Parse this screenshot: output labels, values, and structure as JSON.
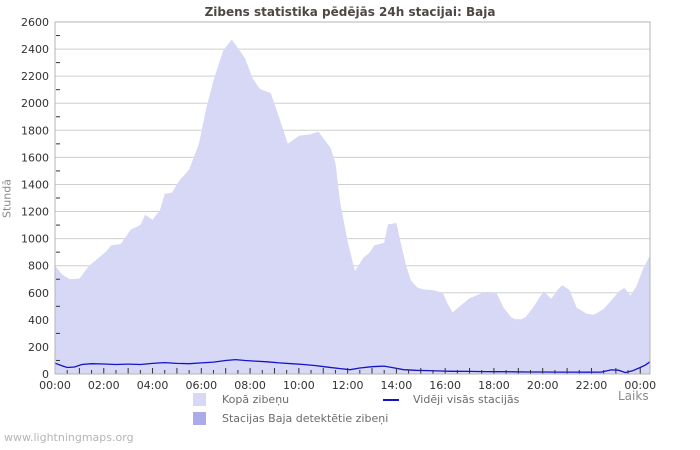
{
  "header": {
    "title": "Zibens statistika pēdējās 24h stacijai: Baja"
  },
  "footer": {
    "watermark": "www.lightningmaps.org"
  },
  "legend": {
    "items": [
      {
        "label": "Kopā zibeņu",
        "swatch": "area",
        "color": "#d7d7f6"
      },
      {
        "label": "Stacijas Baja detektētie zibeņi",
        "swatch": "area",
        "color": "#abableb"
      },
      {
        "label": "Vidēji visās stacijās",
        "swatch": "line",
        "color": "#1414c8"
      }
    ]
  },
  "chart_data": {
    "type": "area",
    "title": "Zibens statistika pēdējās 24h stacijai: Baja",
    "xlabel": "Laiks",
    "ylabel": "Stundā",
    "x_domain": [
      0,
      24.4
    ],
    "ylim": [
      0,
      2600
    ],
    "y_tick_step": 200,
    "y_minor_step": 100,
    "x_minor_step": 0.5,
    "grid": true,
    "legend_position": "bottom",
    "colors": {
      "grid": "#cfcfcf",
      "border": "#b4b4b4",
      "tick": "#333333",
      "tick_label": "#333333",
      "plot_background": "#ffffff"
    },
    "x_ticks": [
      {
        "t": 0,
        "label": "00:00"
      },
      {
        "t": 2,
        "label": "02:00"
      },
      {
        "t": 4,
        "label": "04:00"
      },
      {
        "t": 6,
        "label": "06:00"
      },
      {
        "t": 8,
        "label": "08:00"
      },
      {
        "t": 10,
        "label": "10:00"
      },
      {
        "t": 12,
        "label": "12:00"
      },
      {
        "t": 14,
        "label": "14:00"
      },
      {
        "t": 16,
        "label": "16:00"
      },
      {
        "t": 18,
        "label": "18:00"
      },
      {
        "t": 20,
        "label": "20:00"
      },
      {
        "t": 22,
        "label": "22:00"
      },
      {
        "t": 24,
        "label": "00:00"
      }
    ],
    "series": [
      {
        "name": "Kopā zibeņu",
        "type": "area",
        "color": "#d7d7f6",
        "points": [
          [
            0,
            800
          ],
          [
            0.3,
            735
          ],
          [
            0.6,
            700
          ],
          [
            1.0,
            705
          ],
          [
            1.4,
            800
          ],
          [
            1.8,
            860
          ],
          [
            2.1,
            905
          ],
          [
            2.3,
            950
          ],
          [
            2.7,
            960
          ],
          [
            3.1,
            1065
          ],
          [
            3.5,
            1100
          ],
          [
            3.7,
            1175
          ],
          [
            4.0,
            1140
          ],
          [
            4.3,
            1210
          ],
          [
            4.5,
            1330
          ],
          [
            4.8,
            1340
          ],
          [
            5.1,
            1430
          ],
          [
            5.5,
            1510
          ],
          [
            5.9,
            1700
          ],
          [
            6.2,
            1960
          ],
          [
            6.5,
            2170
          ],
          [
            6.9,
            2390
          ],
          [
            7.25,
            2470
          ],
          [
            7.55,
            2395
          ],
          [
            7.8,
            2330
          ],
          [
            8.1,
            2185
          ],
          [
            8.4,
            2105
          ],
          [
            8.85,
            2075
          ],
          [
            9.2,
            1890
          ],
          [
            9.55,
            1700
          ],
          [
            10.0,
            1760
          ],
          [
            10.45,
            1770
          ],
          [
            10.8,
            1790
          ],
          [
            11.3,
            1670
          ],
          [
            11.5,
            1560
          ],
          [
            11.7,
            1260
          ],
          [
            12.0,
            980
          ],
          [
            12.3,
            760
          ],
          [
            12.65,
            860
          ],
          [
            12.9,
            895
          ],
          [
            13.1,
            950
          ],
          [
            13.5,
            970
          ],
          [
            13.65,
            1105
          ],
          [
            14.0,
            1115
          ],
          [
            14.2,
            950
          ],
          [
            14.4,
            800
          ],
          [
            14.6,
            690
          ],
          [
            14.85,
            640
          ],
          [
            15.1,
            625
          ],
          [
            15.5,
            620
          ],
          [
            15.9,
            600
          ],
          [
            16.1,
            520
          ],
          [
            16.3,
            455
          ],
          [
            16.6,
            500
          ],
          [
            17.0,
            560
          ],
          [
            17.4,
            590
          ],
          [
            17.75,
            608
          ],
          [
            18.1,
            600
          ],
          [
            18.4,
            490
          ],
          [
            18.7,
            420
          ],
          [
            19.0,
            392
          ],
          [
            19.3,
            420
          ],
          [
            19.6,
            490
          ],
          [
            19.85,
            560
          ],
          [
            20.05,
            612
          ],
          [
            20.35,
            555
          ],
          [
            20.6,
            620
          ],
          [
            20.8,
            657
          ],
          [
            21.1,
            620
          ],
          [
            21.4,
            490
          ],
          [
            21.8,
            445
          ],
          [
            22.1,
            437
          ],
          [
            22.5,
            480
          ],
          [
            22.9,
            562
          ],
          [
            23.15,
            615
          ],
          [
            23.35,
            635
          ],
          [
            23.6,
            580
          ],
          [
            23.85,
            650
          ],
          [
            24.1,
            770
          ],
          [
            24.4,
            878
          ]
        ]
      },
      {
        "name": "Stacijas Baja detektētie zibeņi",
        "type": "area",
        "color": "#ababeb",
        "points": [
          [
            0,
            0
          ],
          [
            24.4,
            0
          ]
        ]
      },
      {
        "name": "Vidēji visās stacijās",
        "type": "line",
        "color": "#1414c8",
        "points": [
          [
            0,
            80
          ],
          [
            0.3,
            60
          ],
          [
            0.5,
            48
          ],
          [
            0.8,
            52
          ],
          [
            1.1,
            70
          ],
          [
            1.5,
            76
          ],
          [
            2.0,
            74
          ],
          [
            2.5,
            70
          ],
          [
            3.0,
            73
          ],
          [
            3.5,
            70
          ],
          [
            4.0,
            78
          ],
          [
            4.5,
            84
          ],
          [
            5.0,
            78
          ],
          [
            5.5,
            76
          ],
          [
            6.0,
            82
          ],
          [
            6.5,
            88
          ],
          [
            7.0,
            100
          ],
          [
            7.4,
            106
          ],
          [
            7.8,
            100
          ],
          [
            8.2,
            95
          ],
          [
            8.7,
            90
          ],
          [
            9.2,
            82
          ],
          [
            9.7,
            76
          ],
          [
            10.2,
            70
          ],
          [
            10.7,
            62
          ],
          [
            11.2,
            50
          ],
          [
            11.7,
            40
          ],
          [
            12.1,
            32
          ],
          [
            12.5,
            44
          ],
          [
            13.0,
            54
          ],
          [
            13.5,
            58
          ],
          [
            13.9,
            45
          ],
          [
            14.3,
            32
          ],
          [
            14.8,
            27
          ],
          [
            15.3,
            25
          ],
          [
            15.8,
            22
          ],
          [
            16.3,
            20
          ],
          [
            17.0,
            19
          ],
          [
            17.6,
            18
          ],
          [
            18.2,
            17
          ],
          [
            18.8,
            16
          ],
          [
            19.4,
            15
          ],
          [
            20.0,
            15
          ],
          [
            20.6,
            14
          ],
          [
            21.2,
            14
          ],
          [
            21.8,
            13
          ],
          [
            22.4,
            14
          ],
          [
            22.8,
            30
          ],
          [
            23.1,
            28
          ],
          [
            23.4,
            10
          ],
          [
            23.7,
            25
          ],
          [
            24.0,
            48
          ],
          [
            24.2,
            65
          ],
          [
            24.4,
            90
          ]
        ]
      }
    ]
  }
}
